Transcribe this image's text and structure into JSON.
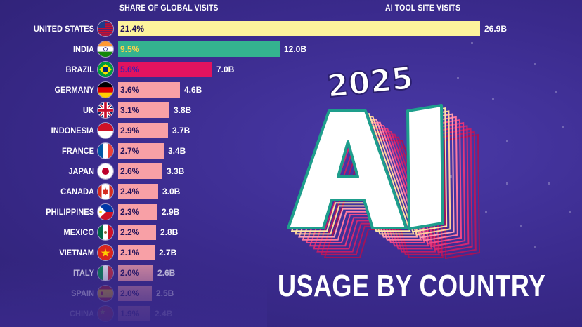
{
  "headers": {
    "share": "SHARE OF GLOBAL VISITS",
    "visits": "AI TOOL SITE VISITS"
  },
  "title": {
    "year": "2025",
    "big": "AI",
    "subtitle": "USAGE BY COUNTRY"
  },
  "colors": {
    "background": "#3a2a8c",
    "united_states": "#fdf39c",
    "india": "#34b38f",
    "brazil": "#e2135f",
    "others": "#f8a0a6"
  },
  "rows": [
    {
      "country": "UNITED STATES",
      "share": "21.4%",
      "visits": "26.9B",
      "flag": "us-flag-icon"
    },
    {
      "country": "INDIA",
      "share": "9.5%",
      "visits": "12.0B",
      "flag": "india-flag-icon"
    },
    {
      "country": "BRAZIL",
      "share": "5.6%",
      "visits": "7.0B",
      "flag": "brazil-flag-icon"
    },
    {
      "country": "GERMANY",
      "share": "3.6%",
      "visits": "4.6B",
      "flag": "germany-flag-icon"
    },
    {
      "country": "UK",
      "share": "3.1%",
      "visits": "3.8B",
      "flag": "uk-flag-icon"
    },
    {
      "country": "INDONESIA",
      "share": "2.9%",
      "visits": "3.7B",
      "flag": "indonesia-flag-icon"
    },
    {
      "country": "FRANCE",
      "share": "2.7%",
      "visits": "3.4B",
      "flag": "france-flag-icon"
    },
    {
      "country": "JAPAN",
      "share": "2.6%",
      "visits": "3.3B",
      "flag": "japan-flag-icon"
    },
    {
      "country": "CANADA",
      "share": "2.4%",
      "visits": "3.0B",
      "flag": "canada-flag-icon"
    },
    {
      "country": "PHILIPPINES",
      "share": "2.3%",
      "visits": "2.9B",
      "flag": "philippines-flag-icon"
    },
    {
      "country": "MEXICO",
      "share": "2.2%",
      "visits": "2.8B",
      "flag": "mexico-flag-icon"
    },
    {
      "country": "VIETNAM",
      "share": "2.1%",
      "visits": "2.7B",
      "flag": "vietnam-flag-icon"
    },
    {
      "country": "ITALY",
      "share": "2.0%",
      "visits": "2.6B",
      "flag": "italy-flag-icon"
    },
    {
      "country": "SPAIN",
      "share": "2.0%",
      "visits": "2.5B",
      "flag": "spain-flag-icon"
    },
    {
      "country": "CHINA",
      "share": "1.9%",
      "visits": "2.4B",
      "flag": "china-flag-icon"
    }
  ],
  "chart_data": {
    "type": "bar",
    "orientation": "horizontal",
    "categories": [
      "UNITED STATES",
      "INDIA",
      "BRAZIL",
      "GERMANY",
      "UK",
      "INDONESIA",
      "FRANCE",
      "JAPAN",
      "CANADA",
      "PHILIPPINES",
      "MEXICO",
      "VIETNAM",
      "ITALY",
      "SPAIN",
      "CHINA"
    ],
    "series": [
      {
        "name": "SHARE OF GLOBAL VISITS",
        "values": [
          21.4,
          9.5,
          5.6,
          3.6,
          3.1,
          2.9,
          2.7,
          2.6,
          2.4,
          2.3,
          2.2,
          2.1,
          2.0,
          2.0,
          1.9
        ]
      },
      {
        "name": "AI TOOL SITE VISITS",
        "values": [
          26.9,
          12.0,
          7.0,
          4.6,
          3.8,
          3.7,
          3.4,
          3.3,
          3.0,
          2.9,
          2.8,
          2.7,
          2.6,
          2.5,
          2.4
        ]
      }
    ],
    "title": "2025 AI USAGE BY COUNTRY",
    "xlabel": "",
    "ylabel": ""
  }
}
